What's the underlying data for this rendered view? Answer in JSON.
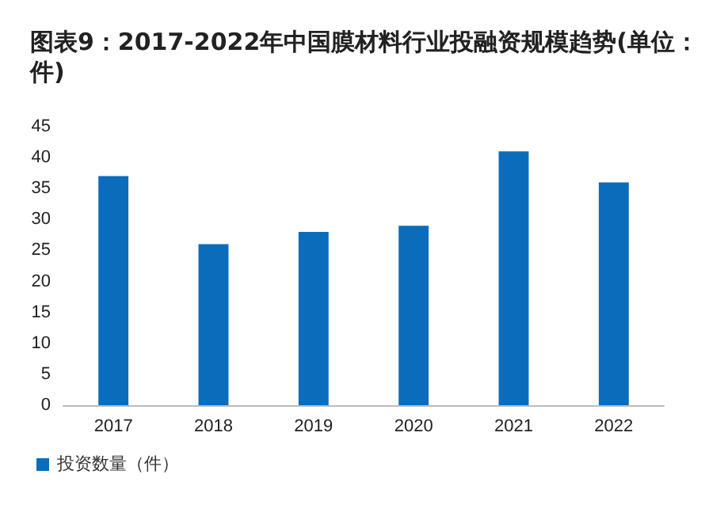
{
  "chart_data": {
    "type": "bar",
    "title": "图表9：2017-2022年中国膜材料行业投融资规模趋势(单位：件)",
    "categories": [
      "2017",
      "2018",
      "2019",
      "2020",
      "2021",
      "2022"
    ],
    "series": [
      {
        "name": "投资数量（件）",
        "color": "#0b6cbc",
        "values": [
          37,
          26,
          28,
          29,
          41,
          36
        ]
      }
    ],
    "ylim": [
      0,
      45
    ],
    "yticks": [
      0,
      5,
      10,
      15,
      20,
      25,
      30,
      35,
      40,
      45
    ],
    "grid": false,
    "legend": "bottom"
  }
}
